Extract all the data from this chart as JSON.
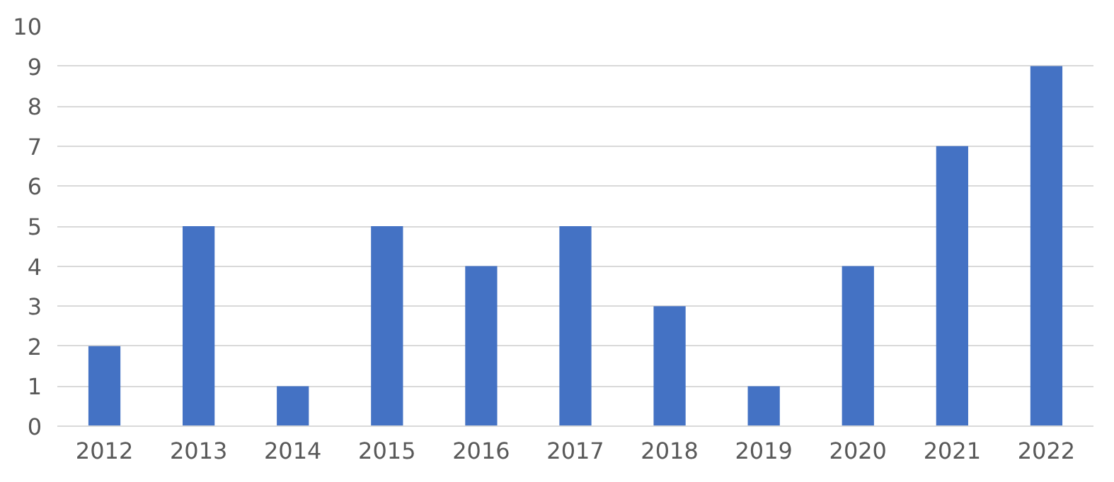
{
  "chart_data": {
    "type": "bar",
    "categories": [
      "2012",
      "2013",
      "2014",
      "2015",
      "2016",
      "2017",
      "2018",
      "2019",
      "2020",
      "2021",
      "2022"
    ],
    "values": [
      2,
      5,
      1,
      5,
      4,
      5,
      3,
      1,
      4,
      7,
      9
    ],
    "color": "#4472c4",
    "ylim": [
      0,
      10
    ],
    "yticks": [
      0,
      1,
      2,
      3,
      4,
      5,
      6,
      7,
      8,
      9,
      10
    ],
    "grid": "y"
  }
}
